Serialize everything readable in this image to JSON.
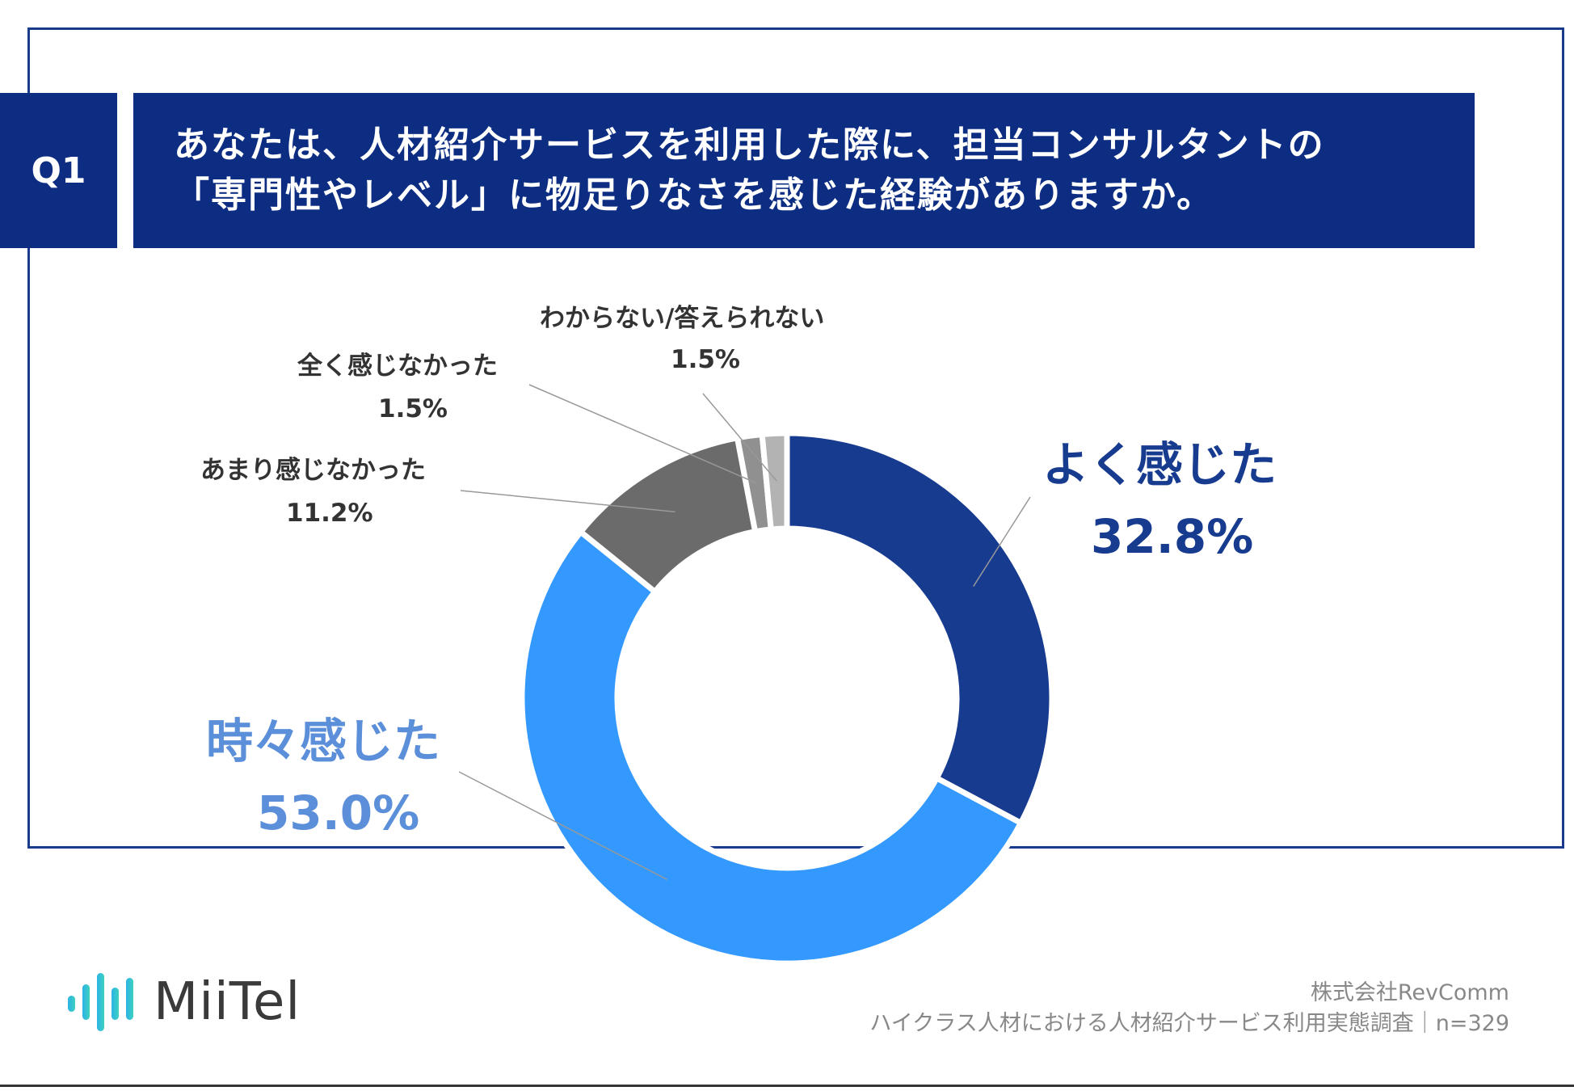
{
  "question": {
    "number": "Q1",
    "line1": "あなたは、人材紹介サービスを利用した際に、担当コンサルタントの",
    "line2": "「専門性やレベル」に物足りなさを感じた経験がありますか。"
  },
  "chart_data": {
    "type": "pie",
    "donut": true,
    "slices": [
      {
        "label": "よく感じた",
        "value": 32.8,
        "value_label": "32.8%",
        "color": "#173b8f"
      },
      {
        "label": "時々感じた",
        "value": 53.0,
        "value_label": "53.0%",
        "color": "#3399ff"
      },
      {
        "label": "あまり感じなかった",
        "value": 11.2,
        "value_label": "11.2%",
        "color": "#6b6b6b"
      },
      {
        "label": "全く感じなかった",
        "value": 1.5,
        "value_label": "1.5%",
        "color": "#909090"
      },
      {
        "label": "わからない/答えられない",
        "value": 1.5,
        "value_label": "1.5%",
        "color": "#b3b3b3"
      }
    ]
  },
  "brand": {
    "logo_text": "MiiTel"
  },
  "source": {
    "company": "株式会社RevComm",
    "survey": "ハイクラス人材における人材紹介サービス利用実態調査｜n=329"
  }
}
